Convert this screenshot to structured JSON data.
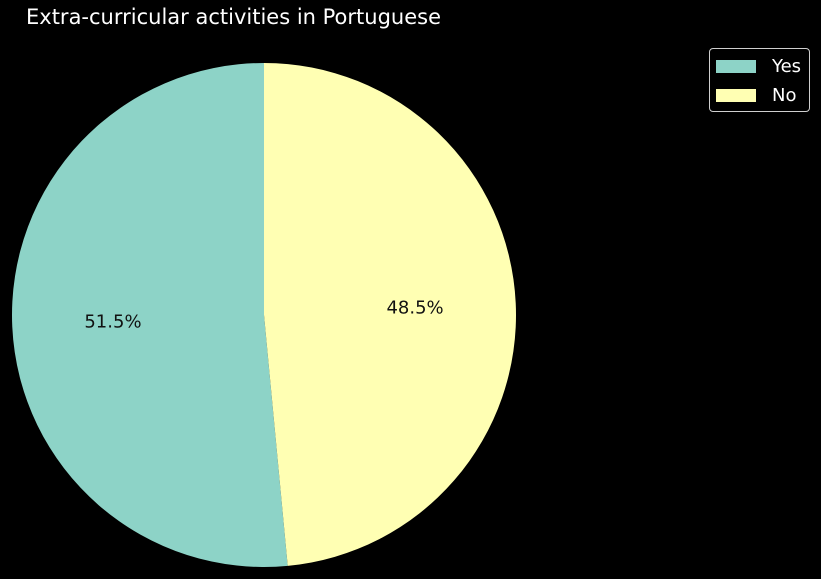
{
  "chart_data": {
    "type": "pie",
    "title": "Extra-curricular activities in Portuguese",
    "labels": [
      "Yes",
      "No"
    ],
    "values": [
      51.5,
      48.5
    ],
    "value_labels": [
      "51.5%",
      "48.5%"
    ],
    "colors": [
      "#8dd3c7",
      "#ffffb3"
    ],
    "start_angle_deg": 90,
    "direction": "counterclockwise",
    "legend_placement": "top-right"
  }
}
